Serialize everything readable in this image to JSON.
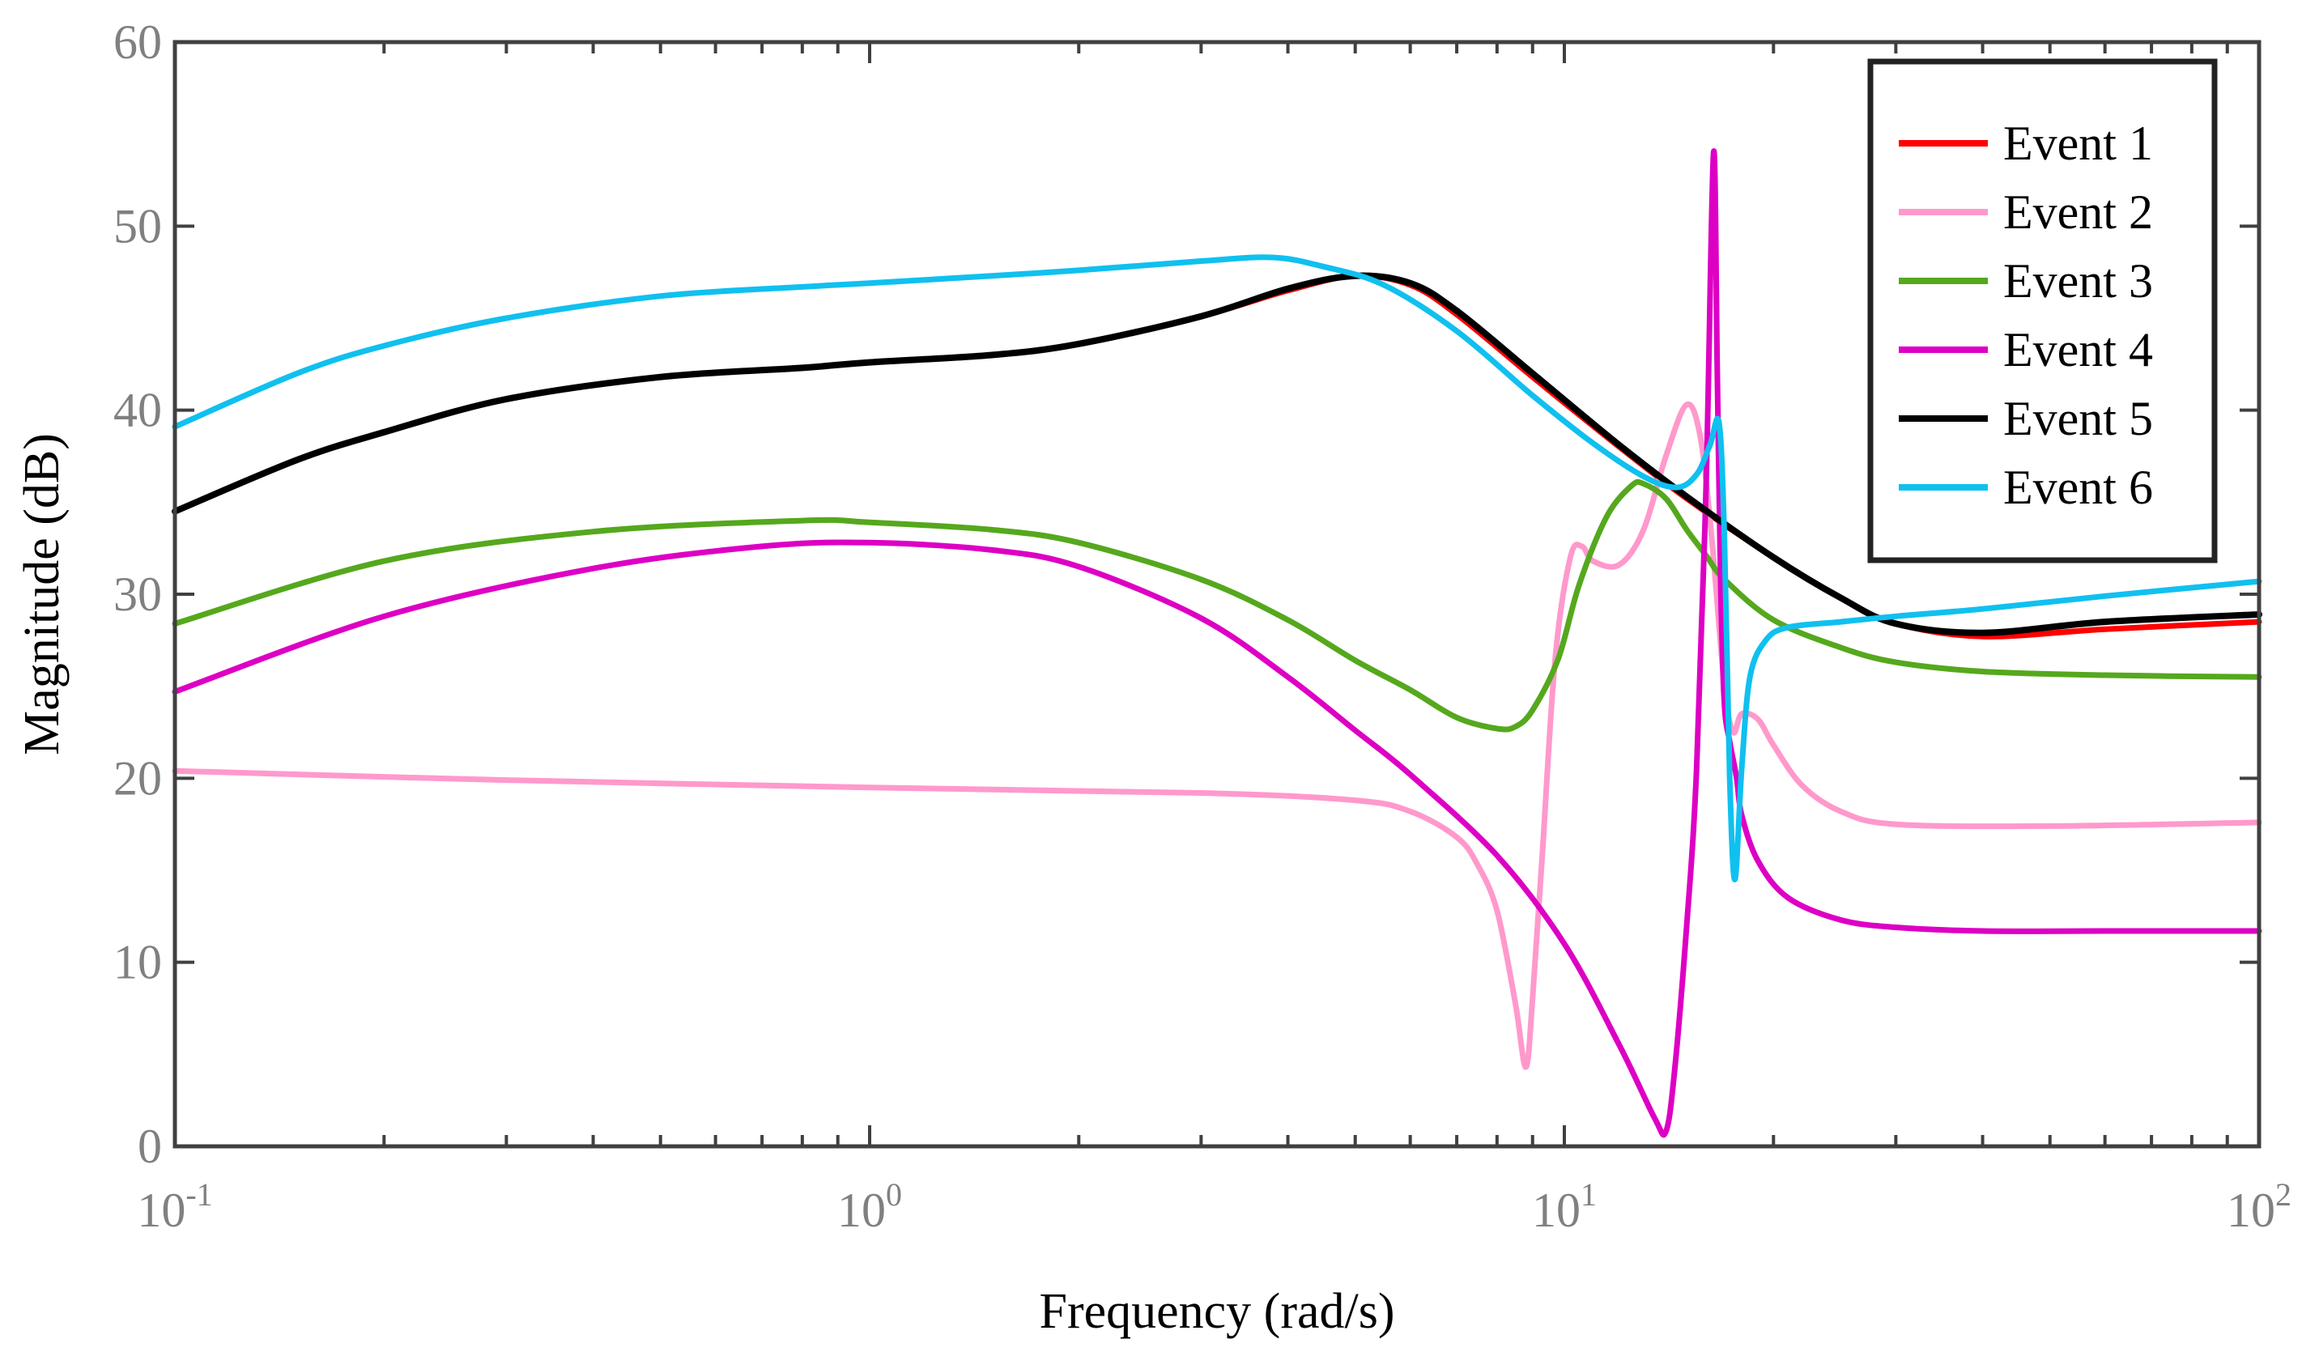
{
  "chart_data": {
    "type": "line",
    "title": "",
    "xlabel": "Frequency (rad/s)",
    "ylabel": "Magnitude (dB)",
    "xscale": "log",
    "xlim": [
      0.1,
      100
    ],
    "ylim": [
      0,
      60
    ],
    "x_ticks": [
      {
        "value": 0.1,
        "base": "10",
        "exp": "-1"
      },
      {
        "value": 1,
        "base": "10",
        "exp": "0"
      },
      {
        "value": 10,
        "base": "10",
        "exp": "1"
      },
      {
        "value": 100,
        "base": "10",
        "exp": "2"
      }
    ],
    "y_ticks": [
      {
        "value": 0,
        "label": "0"
      },
      {
        "value": 10,
        "label": "10"
      },
      {
        "value": 20,
        "label": "20"
      },
      {
        "value": 30,
        "label": "30"
      },
      {
        "value": 40,
        "label": "40"
      },
      {
        "value": 50,
        "label": "50"
      },
      {
        "value": 60,
        "label": "60"
      }
    ],
    "grid": false,
    "legend_position": "top-right",
    "series": [
      {
        "name": "Event 1",
        "color": "#ff0000",
        "x": [
          0.1,
          0.15,
          0.2,
          0.3,
          0.5,
          0.8,
          1.0,
          1.5,
          2.0,
          3.0,
          4.0,
          5.0,
          6.0,
          7.0,
          9.0,
          12.0,
          15.0,
          20.0,
          25.0,
          30.0,
          40.0,
          60.0,
          100.0
        ],
        "values": [
          34.5,
          37.3,
          38.8,
          40.6,
          41.8,
          42.3,
          42.6,
          43.0,
          43.6,
          45.1,
          46.5,
          47.3,
          46.8,
          45.2,
          41.8,
          38.0,
          35.2,
          32.0,
          29.8,
          28.4,
          27.7,
          28.1,
          28.5
        ]
      },
      {
        "name": "Event 2",
        "color": "#ff99cc",
        "x": [
          0.1,
          0.3,
          1.0,
          3.0,
          5.0,
          6.0,
          7.0,
          7.5,
          8.0,
          8.5,
          8.8,
          9.0,
          9.3,
          9.7,
          10.2,
          10.6,
          11.0,
          12.0,
          13.0,
          14.0,
          15.0,
          15.7,
          16.3,
          17.0,
          17.5,
          18.0,
          19.0,
          20.0,
          22.0,
          25.0,
          30.0,
          50.0,
          100.0
        ],
        "values": [
          20.4,
          19.9,
          19.5,
          19.2,
          18.8,
          18.2,
          16.8,
          15.3,
          12.8,
          7.8,
          4.3,
          8.0,
          16.0,
          26.5,
          32.0,
          32.6,
          31.8,
          31.6,
          33.5,
          37.5,
          40.3,
          38.5,
          33.0,
          25.0,
          22.5,
          23.5,
          23.2,
          21.8,
          19.6,
          18.2,
          17.5,
          17.4,
          17.6
        ]
      },
      {
        "name": "Event 3",
        "color": "#55a81d",
        "x": [
          0.1,
          0.2,
          0.4,
          0.8,
          1.0,
          1.5,
          2.0,
          3.0,
          4.0,
          5.0,
          6.0,
          7.0,
          8.0,
          8.5,
          9.0,
          9.8,
          10.5,
          11.5,
          12.5,
          13.0,
          14.0,
          15.0,
          16.0,
          17.0,
          20.0,
          25.0,
          30.0,
          40.0,
          60.0,
          100.0
        ],
        "values": [
          28.4,
          31.8,
          33.4,
          34.0,
          33.9,
          33.5,
          32.8,
          30.8,
          28.6,
          26.4,
          24.8,
          23.3,
          22.7,
          22.8,
          23.7,
          26.5,
          30.5,
          34.2,
          35.9,
          36.0,
          35.2,
          33.5,
          32.1,
          30.8,
          28.6,
          27.1,
          26.3,
          25.8,
          25.6,
          25.5
        ]
      },
      {
        "name": "Event 4",
        "color": "#dd00c4",
        "x": [
          0.1,
          0.2,
          0.4,
          0.7,
          1.0,
          1.5,
          2.0,
          3.0,
          4.0,
          5.0,
          6.0,
          8.0,
          10.0,
          12.0,
          13.5,
          14.0,
          14.4,
          15.0,
          15.5,
          16.0,
          16.4,
          16.6,
          16.8,
          17.0,
          17.3,
          17.7,
          18.0,
          19.0,
          21.0,
          25.0,
          30.0,
          40.0,
          60.0,
          100.0
        ],
        "values": [
          24.7,
          28.8,
          31.4,
          32.6,
          32.8,
          32.4,
          31.5,
          28.7,
          25.5,
          22.6,
          20.2,
          15.8,
          11.0,
          5.5,
          1.5,
          0.8,
          4.0,
          12.0,
          20.5,
          36.0,
          54.0,
          42.0,
          30.0,
          24.0,
          22.0,
          20.0,
          18.0,
          15.5,
          13.5,
          12.3,
          11.9,
          11.7,
          11.7,
          11.7
        ]
      },
      {
        "name": "Event 5",
        "color": "#000000",
        "x": [
          0.1,
          0.15,
          0.2,
          0.3,
          0.5,
          0.8,
          1.0,
          1.5,
          2.0,
          3.0,
          4.0,
          5.0,
          6.0,
          7.0,
          9.0,
          12.0,
          15.0,
          20.0,
          25.0,
          30.0,
          40.0,
          60.0,
          100.0
        ],
        "values": [
          34.5,
          37.3,
          38.8,
          40.6,
          41.8,
          42.3,
          42.6,
          43.0,
          43.6,
          45.1,
          46.6,
          47.3,
          46.9,
          45.4,
          42.0,
          38.1,
          35.3,
          32.0,
          29.8,
          28.4,
          27.9,
          28.5,
          28.9
        ]
      },
      {
        "name": "Event 6",
        "color": "#10c0ef",
        "x": [
          0.1,
          0.15,
          0.2,
          0.3,
          0.5,
          0.8,
          1.0,
          1.5,
          2.0,
          3.0,
          3.8,
          4.5,
          5.5,
          7.0,
          9.0,
          11.0,
          13.0,
          14.5,
          15.5,
          16.2,
          16.7,
          17.0,
          17.3,
          17.6,
          18.0,
          18.5,
          19.5,
          21.0,
          25.0,
          30.0,
          40.0,
          60.0,
          100.0
        ],
        "values": [
          39.1,
          42.0,
          43.5,
          45.0,
          46.2,
          46.7,
          46.9,
          47.3,
          47.6,
          48.1,
          48.3,
          47.8,
          46.8,
          44.3,
          40.8,
          38.2,
          36.4,
          35.8,
          36.5,
          38.1,
          39.3,
          33.0,
          20.0,
          14.5,
          20.5,
          25.5,
          27.5,
          28.2,
          28.5,
          28.8,
          29.2,
          29.9,
          30.7
        ]
      }
    ]
  }
}
